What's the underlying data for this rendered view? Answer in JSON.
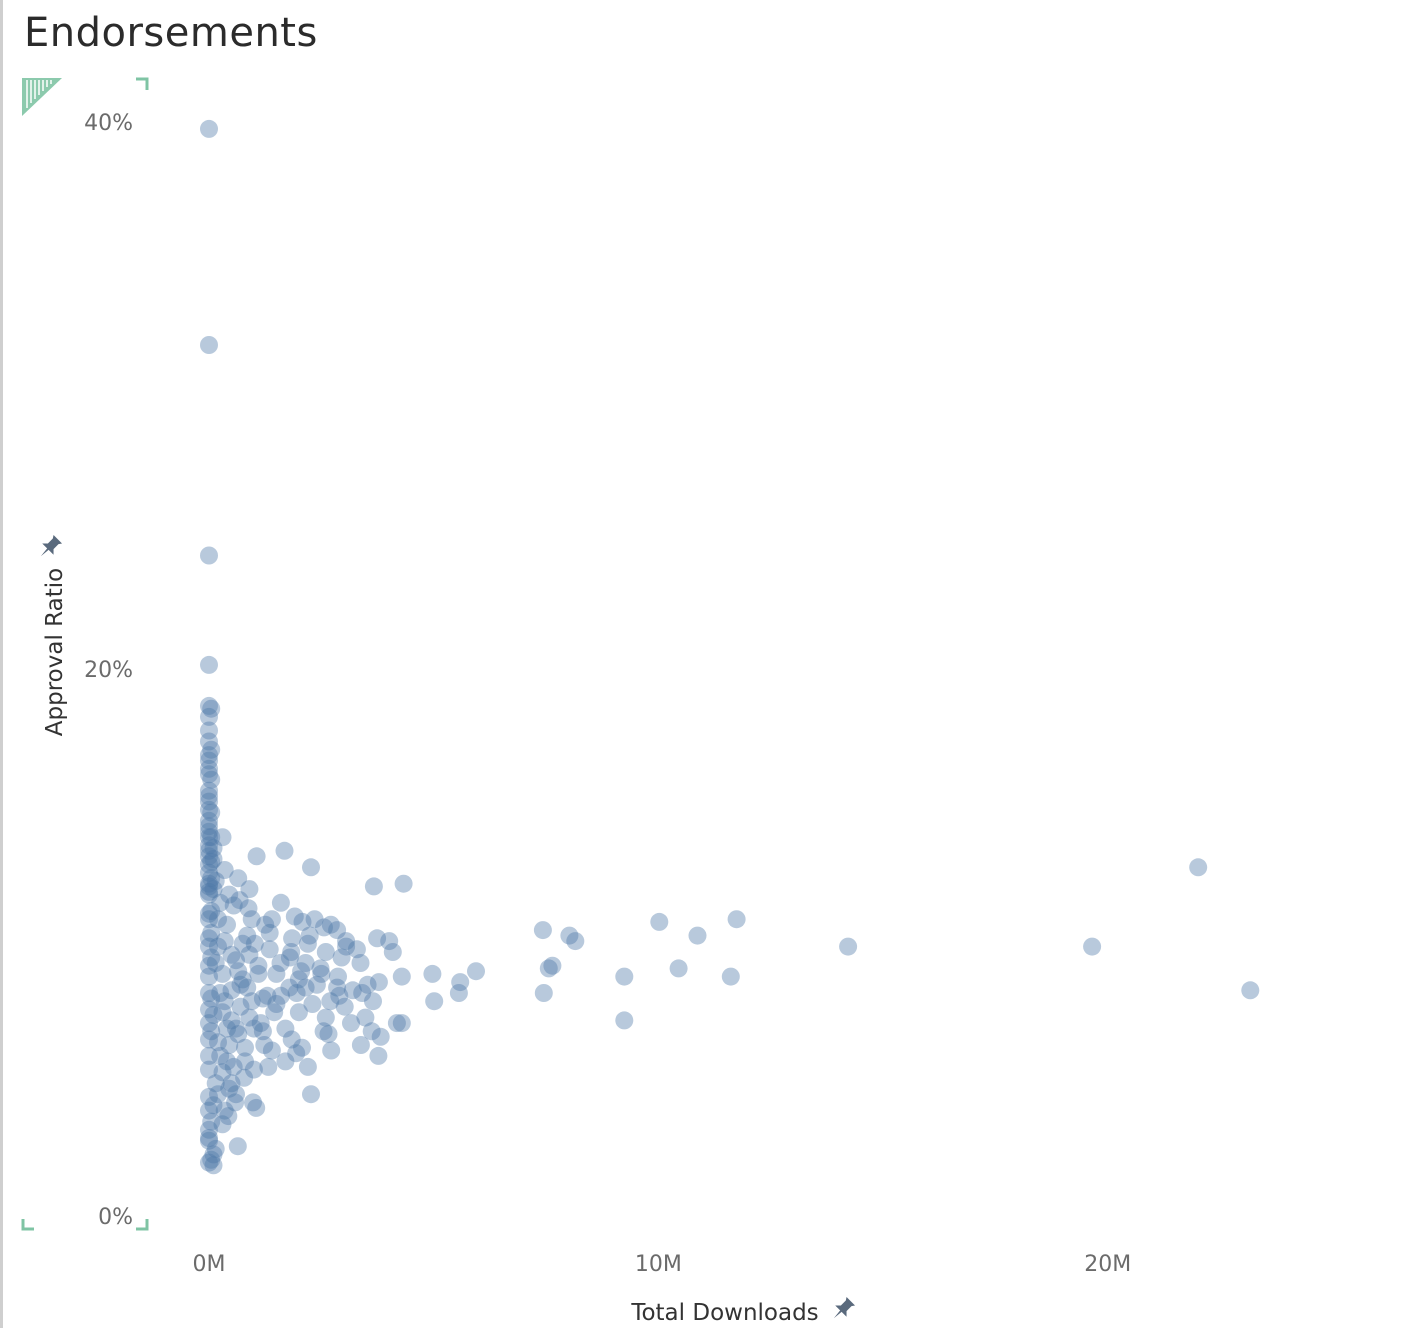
{
  "header": {
    "title": "Endorsements"
  },
  "colors": {
    "point": "#4e79a7",
    "corner_accent": "#7fc4a4",
    "axis_text": "#6b6b6b",
    "title_text": "#2b2b2b"
  },
  "icons": {
    "axis_pin": "pin-icon",
    "corner_marker": "resize-corner-icon"
  },
  "chart_data": {
    "type": "scatter",
    "title": "Endorsements",
    "xlabel": "Total Downloads",
    "ylabel": "Approval Ratio",
    "xlim": [
      0,
      25500000
    ],
    "ylim": [
      0,
      40.3
    ],
    "x_ticks": [
      {
        "value": 0,
        "label": "0M"
      },
      {
        "value": 10000000,
        "label": "10M"
      },
      {
        "value": 20000000,
        "label": "20M"
      }
    ],
    "y_ticks": [
      {
        "value": 0,
        "label": "0%"
      },
      {
        "value": 20,
        "label": "20%"
      },
      {
        "value": 40,
        "label": "40%"
      }
    ],
    "grid": false,
    "marker_opacity": 0.4,
    "series": [
      {
        "points": [
          [
            0,
            39.9
          ],
          [
            0,
            32.0
          ],
          [
            0,
            24.3
          ],
          [
            0,
            20.3
          ],
          [
            0,
            18.8
          ],
          [
            50000,
            18.7
          ],
          [
            0,
            18.4
          ],
          [
            0,
            17.9
          ],
          [
            0,
            17.5
          ],
          [
            50000,
            17.2
          ],
          [
            0,
            16.8
          ],
          [
            0,
            16.3
          ],
          [
            50000,
            16.1
          ],
          [
            0,
            15.7
          ],
          [
            0,
            15.3
          ],
          [
            50000,
            14.9
          ],
          [
            0,
            14.6
          ],
          [
            0,
            14.2
          ],
          [
            50000,
            14.0
          ],
          [
            300000,
            14.0
          ],
          [
            0,
            13.7
          ],
          [
            0,
            13.3
          ],
          [
            50000,
            13.1
          ],
          [
            1060000,
            13.3
          ],
          [
            1680000,
            13.5
          ],
          [
            2270000,
            12.9
          ],
          [
            0,
            12.7
          ],
          [
            0,
            12.3
          ],
          [
            100000,
            12.1
          ],
          [
            650000,
            12.5
          ],
          [
            900000,
            12.1
          ],
          [
            0,
            11.9
          ],
          [
            3670000,
            12.2
          ],
          [
            4330000,
            12.3
          ],
          [
            680000,
            11.7
          ],
          [
            880000,
            11.4
          ],
          [
            1400000,
            11.0
          ],
          [
            1910000,
            11.1
          ],
          [
            2080000,
            10.9
          ],
          [
            2710000,
            10.8
          ],
          [
            3740000,
            10.3
          ],
          [
            4010000,
            10.2
          ],
          [
            2240000,
            10.4
          ],
          [
            2560000,
            10.7
          ],
          [
            2850000,
            10.6
          ],
          [
            3050000,
            10.2
          ],
          [
            3290000,
            9.9
          ],
          [
            3050000,
            10.0
          ],
          [
            4090000,
            9.8
          ],
          [
            1020000,
            10.1
          ],
          [
            1350000,
            9.9
          ],
          [
            1830000,
            9.8
          ],
          [
            2600000,
            9.8
          ],
          [
            3370000,
            9.4
          ],
          [
            2150000,
            9.4
          ],
          [
            2480000,
            9.2
          ],
          [
            1590000,
            9.4
          ],
          [
            2500000,
            9.0
          ],
          [
            2870000,
            8.9
          ],
          [
            4290000,
            8.9
          ],
          [
            3780000,
            8.7
          ],
          [
            3530000,
            8.6
          ],
          [
            2000000,
            8.8
          ],
          [
            1790000,
            8.5
          ],
          [
            2150000,
            8.5
          ],
          [
            3410000,
            8.3
          ],
          [
            2850000,
            8.5
          ],
          [
            3200000,
            8.4
          ],
          [
            4970000,
            9.0
          ],
          [
            5590000,
            8.7
          ],
          [
            5940000,
            9.1
          ],
          [
            5560000,
            8.3
          ],
          [
            5010000,
            8.0
          ],
          [
            7430000,
            10.6
          ],
          [
            7560000,
            9.2
          ],
          [
            7640000,
            9.3
          ],
          [
            8020000,
            10.4
          ],
          [
            8150000,
            10.2
          ],
          [
            7450000,
            8.3
          ],
          [
            9240000,
            8.9
          ],
          [
            9240000,
            7.3
          ],
          [
            10020000,
            10.9
          ],
          [
            10450000,
            9.2
          ],
          [
            10870000,
            10.4
          ],
          [
            11610000,
            8.9
          ],
          [
            11740000,
            11.0
          ],
          [
            14220000,
            10.0
          ],
          [
            19650000,
            10.0
          ],
          [
            22010000,
            12.9
          ],
          [
            23170000,
            8.4
          ],
          [
            1200000,
            8.1
          ],
          [
            1500000,
            7.9
          ],
          [
            2000000,
            7.6
          ],
          [
            2700000,
            8.0
          ],
          [
            3650000,
            8.0
          ],
          [
            3020000,
            7.8
          ],
          [
            3480000,
            7.4
          ],
          [
            4180000,
            7.2
          ],
          [
            4290000,
            7.2
          ],
          [
            3160000,
            7.2
          ],
          [
            3620000,
            6.9
          ],
          [
            2550000,
            6.9
          ],
          [
            2660000,
            6.8
          ],
          [
            1840000,
            6.6
          ],
          [
            1230000,
            6.4
          ],
          [
            3820000,
            6.7
          ],
          [
            3380000,
            6.4
          ],
          [
            1940000,
            6.1
          ],
          [
            2070000,
            6.3
          ],
          [
            2720000,
            6.2
          ],
          [
            3770000,
            6.0
          ],
          [
            2200000,
            5.6
          ],
          [
            1700000,
            5.8
          ],
          [
            1320000,
            5.6
          ],
          [
            1000000,
            5.5
          ],
          [
            780000,
            5.2
          ],
          [
            2270000,
            4.6
          ],
          [
            980000,
            4.3
          ],
          [
            1050000,
            4.1
          ],
          [
            580000,
            4.3
          ],
          [
            430000,
            3.8
          ],
          [
            640000,
            2.7
          ],
          [
            150000,
            2.6
          ],
          [
            100000,
            2.4
          ],
          [
            50000,
            2.2
          ],
          [
            0,
            2.1
          ],
          [
            100000,
            2.0
          ],
          [
            0,
            2.9
          ],
          [
            0,
            3.3
          ],
          [
            300000,
            3.5
          ],
          [
            0,
            4.0
          ],
          [
            200000,
            4.6
          ],
          [
            500000,
            5.0
          ],
          [
            0,
            5.5
          ],
          [
            400000,
            5.8
          ],
          [
            800000,
            6.3
          ],
          [
            0,
            6.6
          ],
          [
            600000,
            7.0
          ],
          [
            900000,
            7.4
          ],
          [
            0,
            7.7
          ],
          [
            1300000,
            8.2
          ],
          [
            700000,
            8.6
          ],
          [
            0,
            8.9
          ],
          [
            1100000,
            9.3
          ],
          [
            500000,
            9.7
          ],
          [
            0,
            10.0
          ],
          [
            850000,
            10.4
          ],
          [
            400000,
            10.8
          ],
          [
            0,
            11.2
          ],
          [
            250000,
            11.6
          ],
          [
            0,
            12.0
          ],
          [
            150000,
            12.4
          ],
          [
            0,
            13.0
          ],
          [
            100000,
            13.6
          ],
          [
            0,
            14.4
          ],
          [
            0,
            15.0
          ],
          [
            200000,
            10.0
          ],
          [
            300000,
            9.0
          ],
          [
            350000,
            8.0
          ],
          [
            400000,
            7.0
          ],
          [
            250000,
            6.0
          ],
          [
            150000,
            5.0
          ],
          [
            100000,
            4.2
          ],
          [
            50000,
            3.6
          ],
          [
            600000,
            9.5
          ],
          [
            750000,
            8.8
          ],
          [
            950000,
            8.0
          ],
          [
            1150000,
            7.2
          ],
          [
            650000,
            6.8
          ],
          [
            550000,
            5.6
          ],
          [
            450000,
            4.8
          ],
          [
            350000,
            4.0
          ],
          [
            1500000,
            9.0
          ],
          [
            1700000,
            7.0
          ],
          [
            2300000,
            7.9
          ],
          [
            1400000,
            6.2
          ],
          [
            1850000,
            10.3
          ],
          [
            2950000,
            9.6
          ],
          [
            1600000,
            11.6
          ],
          [
            1250000,
            10.8
          ],
          [
            950000,
            11.0
          ],
          [
            750000,
            10.1
          ],
          [
            550000,
            11.5
          ],
          [
            350000,
            12.8
          ],
          [
            200000,
            11.0
          ],
          [
            150000,
            9.4
          ],
          [
            250000,
            8.3
          ],
          [
            100000,
            7.5
          ],
          [
            200000,
            6.5
          ],
          [
            300000,
            5.4
          ],
          [
            50000,
            6.9
          ],
          [
            50000,
            8.1
          ],
          [
            50000,
            9.6
          ],
          [
            50000,
            10.5
          ],
          [
            50000,
            11.3
          ],
          [
            50000,
            12.5
          ],
          [
            100000,
            13.2
          ],
          [
            0,
            3.0
          ],
          [
            0,
            4.5
          ],
          [
            0,
            6.0
          ],
          [
            0,
            7.2
          ],
          [
            0,
            8.3
          ],
          [
            0,
            9.3
          ],
          [
            0,
            10.3
          ],
          [
            0,
            11.0
          ],
          [
            0,
            12.2
          ],
          [
            0,
            13.5
          ],
          [
            0,
            14.0
          ],
          [
            0,
            15.5
          ],
          [
            0,
            16.5
          ],
          [
            0,
            17.0
          ],
          [
            2400000,
            8.6
          ],
          [
            2600000,
            7.4
          ],
          [
            2900000,
            8.2
          ],
          [
            1950000,
            8.3
          ],
          [
            1450000,
            7.6
          ],
          [
            1800000,
            9.6
          ],
          [
            1100000,
            9.0
          ],
          [
            1350000,
            10.5
          ],
          [
            900000,
            9.7
          ],
          [
            700000,
            7.8
          ],
          [
            500000,
            7.3
          ],
          [
            800000,
            5.8
          ],
          [
            600000,
            4.6
          ],
          [
            450000,
            6.4
          ],
          [
            300000,
            7.6
          ],
          [
            350000,
            10.2
          ],
          [
            450000,
            11.9
          ],
          [
            500000,
            8.4
          ],
          [
            650000,
            9.1
          ],
          [
            850000,
            8.5
          ],
          [
            1000000,
            7.0
          ],
          [
            1200000,
            6.9
          ],
          [
            1600000,
            8.2
          ],
          [
            2050000,
            9.1
          ],
          [
            2200000,
            10.1
          ],
          [
            2350000,
            11.0
          ]
        ]
      }
    ]
  }
}
